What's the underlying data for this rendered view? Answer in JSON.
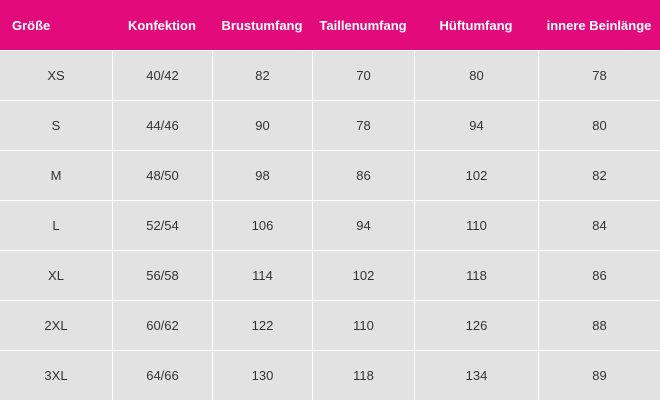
{
  "table": {
    "headers": [
      "Größe",
      "Konfektion",
      "Brustumfang",
      "Taillenumfang",
      "Hüftumfang",
      "innere Beinlänge"
    ],
    "rows": [
      [
        "XS",
        "40/42",
        "82",
        "70",
        "80",
        "78"
      ],
      [
        "S",
        "44/46",
        "90",
        "78",
        "94",
        "80"
      ],
      [
        "M",
        "48/50",
        "98",
        "86",
        "102",
        "82"
      ],
      [
        "L",
        "52/54",
        "106",
        "94",
        "110",
        "84"
      ],
      [
        "XL",
        "56/58",
        "114",
        "102",
        "118",
        "86"
      ],
      [
        "2XL",
        "60/62",
        "122",
        "110",
        "126",
        "88"
      ],
      [
        "3XL",
        "64/66",
        "130",
        "118",
        "134",
        "89"
      ]
    ]
  },
  "colors": {
    "header_background": "#e30b7c",
    "header_text": "#ffffff",
    "row_background": "#e2e2e2",
    "cell_text": "#333333"
  }
}
